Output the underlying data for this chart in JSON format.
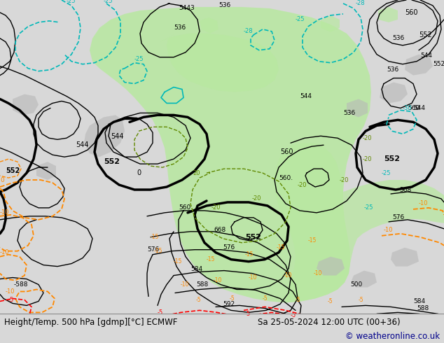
{
  "title_left": "Height/Temp. 500 hPa [gdmp][°C] ECMWF",
  "title_right": "Sa 25-05-2024 12:00 UTC (00+36)",
  "copyright": "© weatheronline.co.uk",
  "bg_color": "#d8d8d8",
  "map_bg": "#d8d8d8",
  "footer_bg": "#d8d8d8",
  "footer_text_color": "#000000",
  "copyright_color": "#00008b",
  "fig_width": 6.34,
  "fig_height": 4.9,
  "dpi": 100,
  "green_land": "#b8e8a0",
  "grey_land": "#b8b8b8",
  "black_line": "#000000",
  "cyan_line": "#00b8b8",
  "orange_line": "#ff8800",
  "red_line": "#ff0000",
  "green_line": "#608800"
}
